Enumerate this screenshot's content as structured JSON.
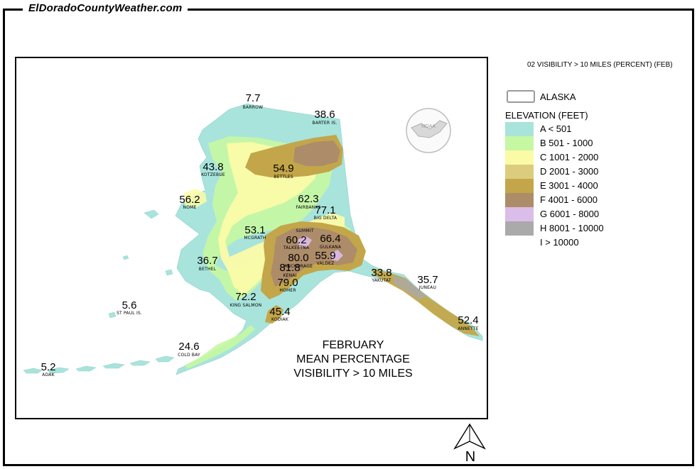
{
  "site": {
    "title": "ElDoradoCountyWeather.com"
  },
  "layer_title": "02 VISIBILITY > 10 MILES (PERCENT) (FEB)",
  "legend": {
    "boundary_label": "ALASKA",
    "elevation_title": "ELEVATION (FEET)",
    "classes": [
      {
        "label": "A < 501",
        "color": "#a8e4dc"
      },
      {
        "label": "B 501 - 1000",
        "color": "#c6f7a2"
      },
      {
        "label": "C 1001 - 2000",
        "color": "#fbfba6"
      },
      {
        "label": "D 2001 - 3000",
        "color": "#dccc7d"
      },
      {
        "label": "E 3001 - 4000",
        "color": "#c3a64a"
      },
      {
        "label": "F 4001 - 6000",
        "color": "#ad8c69"
      },
      {
        "label": "G 6001 - 8000",
        "color": "#dbbde9"
      },
      {
        "label": "H 8001 - 10000",
        "color": "#aaaaaa"
      },
      {
        "label": "I > 10000",
        "color": "#ffffff"
      }
    ]
  },
  "caption": {
    "line1": "FEBRUARY",
    "line2": "MEAN PERCENTAGE",
    "line3": "VISIBILITY > 10 MILES"
  },
  "logo": {
    "text": "NOAA"
  },
  "north_arrow": {
    "label": "N"
  },
  "stations": [
    {
      "name": "BARROW",
      "value": "7.7"
    },
    {
      "name": "BARTER IS.",
      "value": "38.6"
    },
    {
      "name": "KOTZEBUE",
      "value": "43.8"
    },
    {
      "name": "BETTLES",
      "value": "54.9"
    },
    {
      "name": "NOME",
      "value": "56.2"
    },
    {
      "name": "FAIRBANKS",
      "value": "62.3"
    },
    {
      "name": "BIG DELTA",
      "value": "77.1"
    },
    {
      "name": "MCGRATH",
      "value": "53.1"
    },
    {
      "name": "SUMMIT",
      "value": ""
    },
    {
      "name": "TALKEETNA",
      "value": "60.2"
    },
    {
      "name": "GULKANA",
      "value": "66.4"
    },
    {
      "name": "ANCHORAGE",
      "value": "80.0"
    },
    {
      "name": "VALDEZ",
      "value": "55.9"
    },
    {
      "name": "KENAI",
      "value": "81.8"
    },
    {
      "name": "BETHEL",
      "value": "36.7"
    },
    {
      "name": "HOMER",
      "value": "79.0"
    },
    {
      "name": "YAKUTAT",
      "value": "33.8"
    },
    {
      "name": "JUNEAU",
      "value": "35.7"
    },
    {
      "name": "KING SALMON",
      "value": "72.2"
    },
    {
      "name": "KODIAK",
      "value": "45.4"
    },
    {
      "name": "ANNETTE",
      "value": "52.4"
    },
    {
      "name": "ST PAUL IS.",
      "value": "5.6"
    },
    {
      "name": "COLD BAY",
      "value": "24.6"
    },
    {
      "name": "ADAK",
      "value": "5.2"
    }
  ]
}
